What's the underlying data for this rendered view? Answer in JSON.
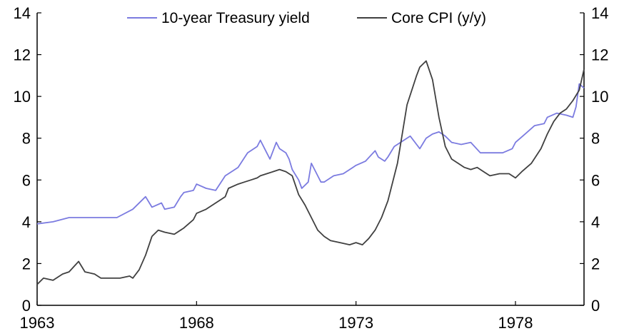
{
  "chart_data": {
    "type": "line",
    "title": "",
    "xlabel": "",
    "ylabel": "",
    "ylabel_right": "",
    "xlim": [
      1963,
      1980.15
    ],
    "ylim": [
      0,
      14
    ],
    "ylim_right": [
      0,
      14
    ],
    "x_ticks": [
      1963,
      1968,
      1973,
      1978
    ],
    "x_tick_labels": [
      "1963",
      "1968",
      "1973",
      "1978"
    ],
    "y_ticks": [
      0,
      2,
      4,
      6,
      8,
      10,
      12,
      14
    ],
    "y_tick_labels": [
      "0",
      "2",
      "4",
      "6",
      "8",
      "10",
      "12",
      "14"
    ],
    "legend_position": "top-center",
    "series": [
      {
        "name": "10-year Treasury yield",
        "color": "#7b7be0",
        "x": [
          1963.0,
          1963.5,
          1964.0,
          1964.5,
          1965.0,
          1965.5,
          1966.0,
          1966.4,
          1966.6,
          1966.9,
          1967.0,
          1967.3,
          1967.5,
          1967.6,
          1967.9,
          1968.0,
          1968.3,
          1968.6,
          1968.9,
          1969.0,
          1969.3,
          1969.6,
          1969.9,
          1970.0,
          1970.2,
          1970.3,
          1970.5,
          1970.6,
          1970.8,
          1970.9,
          1971.0,
          1971.2,
          1971.3,
          1971.5,
          1971.6,
          1971.8,
          1971.9,
          1972.0,
          1972.3,
          1972.6,
          1972.9,
          1973.0,
          1973.3,
          1973.6,
          1973.7,
          1973.9,
          1974.0,
          1974.2,
          1974.5,
          1974.7,
          1974.9,
          1975.0,
          1975.2,
          1975.4,
          1975.6,
          1975.8,
          1976.0,
          1976.3,
          1976.6,
          1976.9,
          1977.0,
          1977.3,
          1977.6,
          1977.9,
          1978.0,
          1978.3,
          1978.6,
          1978.9,
          1979.0,
          1979.3,
          1979.6,
          1979.8,
          1979.9,
          1980.0,
          1980.15
        ],
        "values": [
          3.9,
          4.0,
          4.2,
          4.2,
          4.2,
          4.2,
          4.6,
          5.2,
          4.7,
          4.9,
          4.6,
          4.7,
          5.2,
          5.4,
          5.5,
          5.8,
          5.6,
          5.5,
          6.2,
          6.3,
          6.6,
          7.3,
          7.6,
          7.9,
          7.3,
          7.0,
          7.8,
          7.5,
          7.3,
          7.0,
          6.5,
          6.0,
          5.6,
          5.9,
          6.8,
          6.2,
          5.9,
          5.9,
          6.2,
          6.3,
          6.6,
          6.7,
          6.9,
          7.4,
          7.1,
          6.9,
          7.1,
          7.6,
          7.9,
          8.1,
          7.7,
          7.5,
          8.0,
          8.2,
          8.3,
          8.1,
          7.8,
          7.7,
          7.8,
          7.3,
          7.3,
          7.3,
          7.3,
          7.5,
          7.8,
          8.2,
          8.6,
          8.7,
          9.0,
          9.2,
          9.1,
          9.0,
          9.5,
          10.6,
          10.4
        ]
      },
      {
        "name": "Core CPI (y/y)",
        "color": "#404040",
        "x": [
          1963.0,
          1963.2,
          1963.5,
          1963.8,
          1964.0,
          1964.3,
          1964.5,
          1964.8,
          1965.0,
          1965.3,
          1965.6,
          1965.9,
          1966.0,
          1966.2,
          1966.4,
          1966.6,
          1966.8,
          1967.0,
          1967.3,
          1967.6,
          1967.9,
          1968.0,
          1968.3,
          1968.6,
          1968.9,
          1969.0,
          1969.3,
          1969.5,
          1969.7,
          1969.9,
          1970.0,
          1970.2,
          1970.4,
          1970.6,
          1970.8,
          1971.0,
          1971.2,
          1971.4,
          1971.6,
          1971.8,
          1972.0,
          1972.2,
          1972.5,
          1972.8,
          1973.0,
          1973.2,
          1973.4,
          1973.6,
          1973.8,
          1974.0,
          1974.3,
          1974.6,
          1974.9,
          1975.0,
          1975.2,
          1975.4,
          1975.6,
          1975.8,
          1976.0,
          1976.2,
          1976.4,
          1976.6,
          1976.8,
          1977.0,
          1977.2,
          1977.5,
          1977.8,
          1978.0,
          1978.2,
          1978.5,
          1978.8,
          1979.0,
          1979.2,
          1979.4,
          1979.6,
          1979.8,
          1980.0,
          1980.15
        ],
        "values": [
          1.0,
          1.3,
          1.2,
          1.5,
          1.6,
          2.1,
          1.6,
          1.5,
          1.3,
          1.3,
          1.3,
          1.4,
          1.3,
          1.7,
          2.4,
          3.3,
          3.6,
          3.5,
          3.4,
          3.7,
          4.1,
          4.4,
          4.6,
          4.9,
          5.2,
          5.6,
          5.8,
          5.9,
          6.0,
          6.1,
          6.2,
          6.3,
          6.4,
          6.5,
          6.4,
          6.2,
          5.3,
          4.8,
          4.2,
          3.6,
          3.3,
          3.1,
          3.0,
          2.9,
          3.0,
          2.9,
          3.2,
          3.6,
          4.2,
          5.0,
          6.8,
          9.6,
          11.0,
          11.4,
          11.7,
          10.8,
          9.0,
          7.6,
          7.0,
          6.8,
          6.6,
          6.5,
          6.6,
          6.4,
          6.2,
          6.3,
          6.3,
          6.1,
          6.4,
          6.8,
          7.5,
          8.2,
          8.8,
          9.2,
          9.4,
          9.8,
          10.3,
          11.3
        ]
      }
    ]
  }
}
